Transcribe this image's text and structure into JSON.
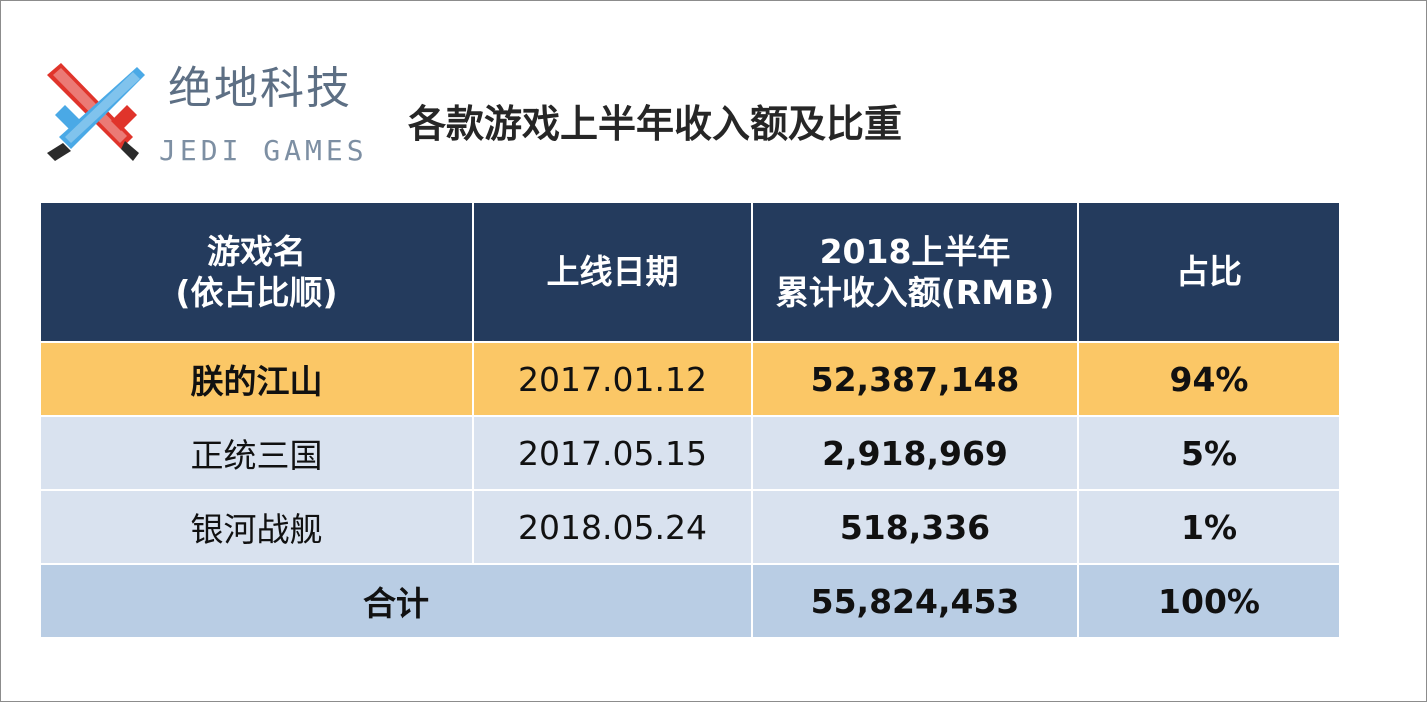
{
  "logo": {
    "cn_text": "绝地科技",
    "en_text": "JEDI GAMES"
  },
  "title": "各款游戏上半年收入额及比重",
  "colors": {
    "header_bg": "#243b5d",
    "highlight_row": "#fbc766",
    "normal_row": "#d9e2ef",
    "total_row": "#b9cde4",
    "logo_red": "#e0342b",
    "logo_blue": "#4aa9e6"
  },
  "chart_data": {
    "type": "table",
    "title": "各款游戏上半年收入额及比重",
    "columns": [
      [
        "游戏名",
        "(依占比顺)"
      ],
      [
        "上线日期"
      ],
      [
        "2018上半年",
        "累计收入额(RMB)"
      ],
      [
        "占比"
      ]
    ],
    "rows": [
      {
        "name": "朕的江山",
        "date": "2017.01.12",
        "revenue": "52,387,148",
        "share": "94%",
        "highlight": true
      },
      {
        "name": "正统三国",
        "date": "2017.05.15",
        "revenue": "2,918,969",
        "share": "5%",
        "highlight": false
      },
      {
        "name": "银河战舰",
        "date": "2018.05.24",
        "revenue": "518,336",
        "share": "1%",
        "highlight": false
      }
    ],
    "total": {
      "label": "合计",
      "revenue": "55,824,453",
      "share": "100%"
    }
  }
}
